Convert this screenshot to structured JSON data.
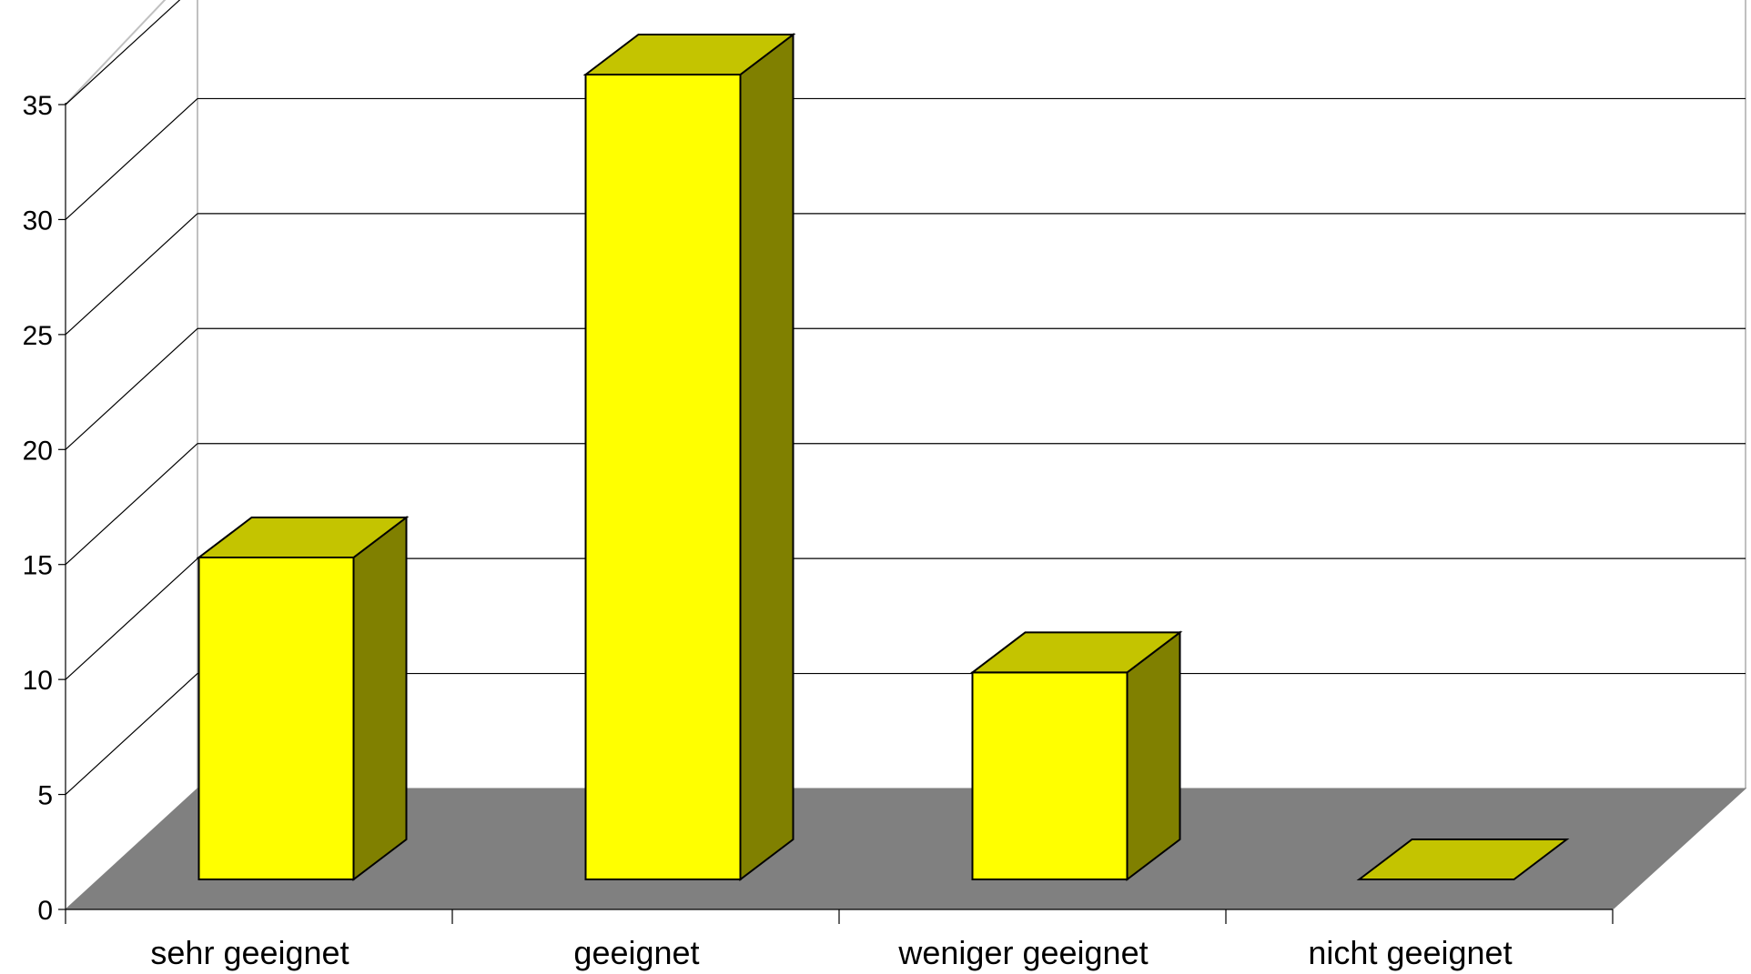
{
  "chart_data": {
    "type": "bar",
    "three_d": true,
    "categories": [
      "sehr geeignet",
      "geeignet",
      "weniger geeignet",
      "nicht geeignet"
    ],
    "values": [
      14,
      35,
      9,
      0
    ],
    "ylim": [
      0,
      35
    ],
    "yticks": [
      0,
      5,
      10,
      15,
      20,
      25,
      30,
      35
    ],
    "grid": true,
    "legend": "none",
    "colors": {
      "bar_front": "#ffff00",
      "bar_top": "#c4c400",
      "bar_side": "#808000",
      "floor": "#808080",
      "grid": "#000000",
      "wall_edge": "#c0c0c0"
    }
  }
}
